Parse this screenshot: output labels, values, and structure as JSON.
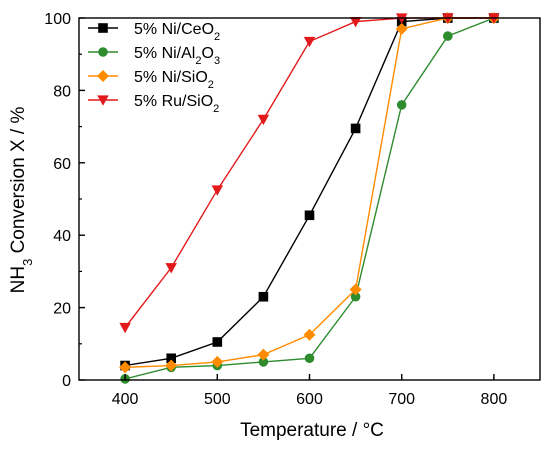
{
  "chart_data": {
    "type": "line",
    "xlabel": "Temperature / °C",
    "ylabel_parts": [
      "NH",
      "3",
      " Conversion X / %"
    ],
    "xlim": [
      350,
      850
    ],
    "ylim": [
      0,
      100
    ],
    "xticks": [
      400,
      500,
      600,
      700,
      800
    ],
    "yticks": [
      0,
      20,
      40,
      60,
      80,
      100
    ],
    "grid": false,
    "legend_position": "top-left",
    "series": [
      {
        "name": "5% Ni/CeO2",
        "label_parts": [
          "5% Ni/CeO",
          "2"
        ],
        "color": "#000000",
        "marker": "square",
        "x": [
          400,
          450,
          500,
          550,
          600,
          650,
          700,
          750,
          800
        ],
        "y": [
          4,
          6,
          10.5,
          23,
          45.5,
          69.5,
          99,
          100,
          100
        ]
      },
      {
        "name": "5% Ni/Al2O3",
        "label_parts": [
          "5% Ni/Al",
          "2",
          "O",
          "3"
        ],
        "color": "#2e8b2e",
        "marker": "circle",
        "x": [
          400,
          450,
          500,
          550,
          600,
          650,
          700,
          750,
          800
        ],
        "y": [
          0.3,
          3.5,
          4,
          5,
          6,
          23,
          76,
          95,
          100
        ]
      },
      {
        "name": "5% Ni/SiO2",
        "label_parts": [
          "5% Ni/SiO",
          "2"
        ],
        "color": "#ff8c00",
        "marker": "diamond",
        "x": [
          400,
          450,
          500,
          550,
          600,
          650,
          700,
          750,
          800
        ],
        "y": [
          3.5,
          4,
          5,
          7,
          12.5,
          25,
          97,
          100,
          100
        ]
      },
      {
        "name": "5% Ru/SiO2",
        "label_parts": [
          "5% Ru/SiO",
          "2"
        ],
        "color": "#e31a1c",
        "marker": "triangle-down",
        "x": [
          400,
          450,
          500,
          550,
          600,
          650,
          700,
          750,
          800
        ],
        "y": [
          14.5,
          31,
          52.5,
          72,
          93.5,
          99,
          100,
          100,
          100
        ]
      }
    ]
  }
}
